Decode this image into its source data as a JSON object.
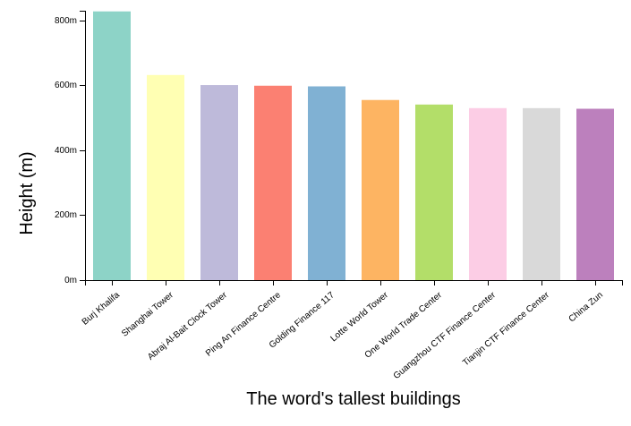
{
  "chart_data": {
    "type": "bar",
    "title": "",
    "xlabel": "The word's tallest buildings",
    "ylabel": "Height (m)",
    "y_unit_suffix": "m",
    "ylim": [
      0,
      830
    ],
    "y_ticks": [
      0,
      200,
      400,
      600,
      800
    ],
    "grid": false,
    "legend": "none",
    "categories": [
      "Burj Khalifa",
      "Shanghai Tower",
      "Abraj Al-Bait Clock Tower",
      "Ping An Finance Centre",
      "Golding Finance 117",
      "Lotte World Tower",
      "One World Trade Center",
      "Guangzhou CTF Finance Center",
      "Tianjin CTF Finance Center",
      "China Zun"
    ],
    "values": [
      828,
      632,
      601,
      599,
      597,
      555,
      541,
      530,
      530,
      528
    ],
    "colors": [
      "#8dd3c7",
      "#ffffb3",
      "#bebada",
      "#fb8072",
      "#80b1d3",
      "#fdb462",
      "#b3de69",
      "#fccde5",
      "#d9d9d9",
      "#bc80bd"
    ]
  }
}
